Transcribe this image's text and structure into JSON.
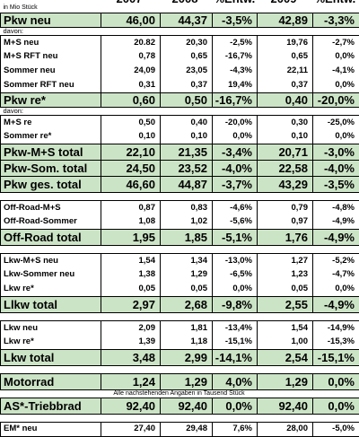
{
  "header": {
    "unit_label": "in Mio Stück",
    "col_2007": "2007",
    "col_2008": "2008",
    "col_entw1": "%Entw.",
    "col_2009": "2009",
    "col_entw2": "%Entw."
  },
  "rows": {
    "pkw_neu": {
      "label": "Pkw neu",
      "v2007": "46,00",
      "v2008": "44,37",
      "e1": "-3,5%",
      "v2009": "42,89",
      "e2": "-3,3%"
    },
    "davon1": "davon:",
    "ms_neu": {
      "label": "M+S neu",
      "v2007": "20.82",
      "v2008": "20,30",
      "e1": "-2,5%",
      "v2009": "19,76",
      "e2": "-2,7%"
    },
    "ms_rft_neu": {
      "label": "M+S RFT neu",
      "v2007": "0,78",
      "v2008": "0,65",
      "e1": "-16,7%",
      "v2009": "0,65",
      "e2": "0,0%"
    },
    "sommer_neu": {
      "label": "Sommer neu",
      "v2007": "24,09",
      "v2008": "23,05",
      "e1": "-4,3%",
      "v2009": "22,11",
      "e2": "-4,1%"
    },
    "sommer_rft_neu": {
      "label": "Sommer RFT neu",
      "v2007": "0,31",
      "v2008": "0,37",
      "e1": "19,4%",
      "v2009": "0,37",
      "e2": "0,0%"
    },
    "pkw_re": {
      "label": "Pkw re*",
      "v2007": "0,60",
      "v2008": "0,50",
      "e1": "-16,7%",
      "v2009": "0,40",
      "e2": "-20,0%"
    },
    "davon2": "davon:",
    "ms_re": {
      "label": "M+S re",
      "v2007": "0,50",
      "v2008": "0,40",
      "e1": "-20,0%",
      "v2009": "0,30",
      "e2": "-25,0%"
    },
    "sommer_re": {
      "label": "Sommer re*",
      "v2007": "0,10",
      "v2008": "0,10",
      "e1": "0,0%",
      "v2009": "0,10",
      "e2": "0,0%"
    },
    "pkw_ms_total": {
      "label": "Pkw-M+S total",
      "v2007": "22,10",
      "v2008": "21,35",
      "e1": "-3,4%",
      "v2009": "20,71",
      "e2": "-3,0%"
    },
    "pkw_som_total": {
      "label": "Pkw-Som. total",
      "v2007": "24,50",
      "v2008": "23,52",
      "e1": "-4,0%",
      "v2009": "22,58",
      "e2": "-4,0%"
    },
    "pkw_ges_total": {
      "label": "Pkw ges. total",
      "v2007": "46,60",
      "v2008": "44,87",
      "e1": "-3,7%",
      "v2009": "43,29",
      "e2": "-3,5%"
    },
    "offroad_ms": {
      "label": "Off-Road-M+S",
      "v2007": "0,87",
      "v2008": "0,83",
      "e1": "-4,6%",
      "v2009": "0,79",
      "e2": "-4,8%"
    },
    "offroad_sommer": {
      "label": "Off-Road-Sommer",
      "v2007": "1,08",
      "v2008": "1,02",
      "e1": "-5,6%",
      "v2009": "0,97",
      "e2": "-4,9%"
    },
    "offroad_total": {
      "label": "Off-Road total",
      "v2007": "1,95",
      "v2008": "1,85",
      "e1": "-5,1%",
      "v2009": "1,76",
      "e2": "-4,9%"
    },
    "lkw_ms_neu": {
      "label": "Lkw-M+S neu",
      "v2007": "1,54",
      "v2008": "1,34",
      "e1": "-13,0%",
      "v2009": "1,27",
      "e2": "-5,2%"
    },
    "lkw_sommer_neu": {
      "label": "Lkw-Sommer neu",
      "v2007": "1,38",
      "v2008": "1,29",
      "e1": "-6,5%",
      "v2009": "1,23",
      "e2": "-4,7%"
    },
    "lkw_re_a": {
      "label": "Lkw re*",
      "v2007": "0,05",
      "v2008": "0,05",
      "e1": "0,0%",
      "v2009": "0,05",
      "e2": "0,0%"
    },
    "llkw_total": {
      "label": "Llkw total",
      "v2007": "2,97",
      "v2008": "2,68",
      "e1": "-9,8%",
      "v2009": "2,55",
      "e2": "-4,9%"
    },
    "lkw_neu": {
      "label": "Lkw neu",
      "v2007": "2,09",
      "v2008": "1,81",
      "e1": "-13,4%",
      "v2009": "1,54",
      "e2": "-14,9%"
    },
    "lkw_re_b": {
      "label": "Lkw re*",
      "v2007": "1,39",
      "v2008": "1,18",
      "e1": "-15,1%",
      "v2009": "1,00",
      "e2": "-15,3%"
    },
    "lkw_total": {
      "label": "Lkw total",
      "v2007": "3,48",
      "v2008": "2,99",
      "e1": "-14,1%",
      "v2009": "2,54",
      "e2": "-15,1%"
    },
    "motorrad": {
      "label": "Motorrad",
      "v2007": "1,24",
      "v2008": "1,29",
      "e1": "4,0%",
      "v2009": "1,29",
      "e2": "0,0%"
    },
    "tausend_note": "Alle nachstehenden Angaben in Tausend Stück",
    "as_triebbrad": {
      "label": "AS*-Triebbrad",
      "v2007": "92,40",
      "v2008": "92,40",
      "e1": "0,0%",
      "v2009": "92,40",
      "e2": "0,0%"
    },
    "em_neu": {
      "label": "EM* neu",
      "v2007": "27,40",
      "v2008": "29,48",
      "e1": "7,6%",
      "v2009": "28,00",
      "e2": "-5,0%"
    }
  }
}
